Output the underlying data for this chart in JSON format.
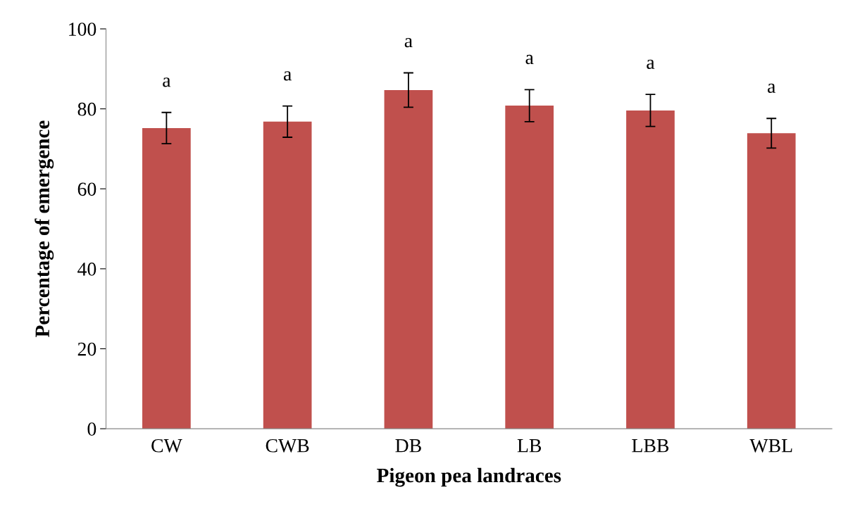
{
  "chart_data": {
    "type": "bar",
    "xlabel": "Pigeon pea landraces",
    "ylabel": "Percentage of emergence",
    "categories": [
      "CW",
      "CWB",
      "DB",
      "LB",
      "LBB",
      "WBL"
    ],
    "values": [
      75.2,
      76.8,
      84.7,
      80.8,
      79.6,
      73.9
    ],
    "errors": [
      3.9,
      3.9,
      4.3,
      4.0,
      4.0,
      3.7
    ],
    "color": "#c0504d",
    "ylim": [
      0,
      100
    ],
    "yticks": [
      0,
      20,
      40,
      60,
      80,
      100
    ],
    "grid": false,
    "annotations": [
      "a",
      "a",
      "a",
      "a",
      "a",
      "a"
    ]
  }
}
